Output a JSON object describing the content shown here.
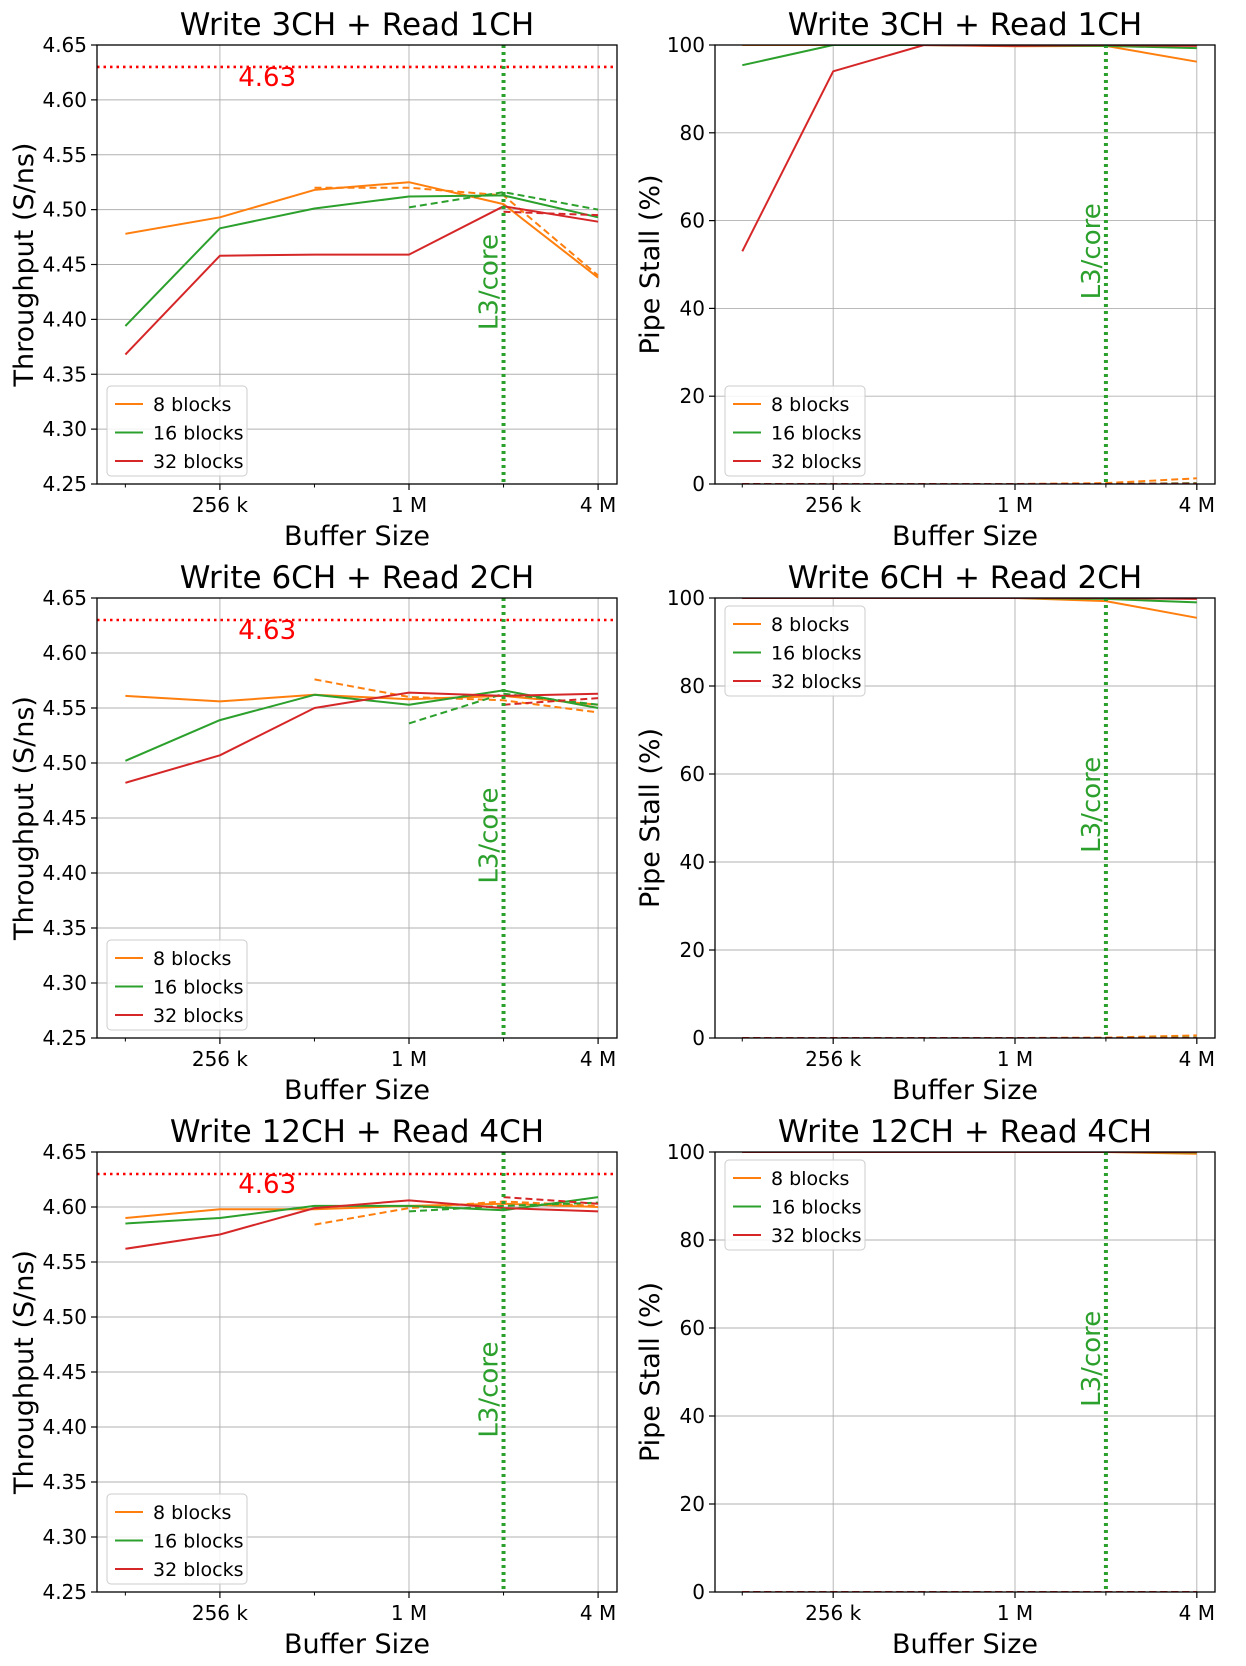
{
  "colors": {
    "8 blocks": "#ff7f0e",
    "16 blocks": "#2ca02c",
    "32 blocks": "#d62728",
    "ref_line": "#ff0000",
    "l3_line": "#2ca02c"
  },
  "chart_data": [
    {
      "type": "line",
      "title": "Write 3CH + Read 1CH",
      "xlabel": "Buffer Size",
      "ylabel": "Throughput (S/ns)",
      "xscale": "log2",
      "xticks": [
        "256 k",
        "1 M",
        "4 M"
      ],
      "ylim": [
        4.25,
        4.65
      ],
      "yticks": [
        "4.25",
        "4.30",
        "4.35",
        "4.40",
        "4.45",
        "4.50",
        "4.55",
        "4.60",
        "4.65"
      ],
      "grid": true,
      "legend": "lower-left",
      "hline": {
        "value": 4.63,
        "label": "4.63"
      },
      "vline": {
        "label": "L3/core"
      },
      "series": [
        {
          "name": "8 blocks",
          "points": [
            [
              -1,
              4.478
            ],
            [
              0,
              4.493
            ],
            [
              1,
              4.518
            ],
            [
              2,
              4.525
            ],
            [
              3,
              4.505
            ],
            [
              4,
              4.438
            ]
          ],
          "dashed": [
            [
              1,
              4.52
            ],
            [
              2,
              4.52
            ],
            [
              3,
              4.513
            ],
            [
              4,
              4.44
            ]
          ]
        },
        {
          "name": "16 blocks",
          "points": [
            [
              -1,
              4.394
            ],
            [
              0,
              4.483
            ],
            [
              1,
              4.501
            ],
            [
              2,
              4.512
            ],
            [
              3,
              4.513
            ],
            [
              4,
              4.493
            ]
          ],
          "dashed": [
            [
              2,
              4.502
            ],
            [
              3,
              4.516
            ],
            [
              4,
              4.5
            ]
          ]
        },
        {
          "name": "32 blocks",
          "points": [
            [
              -1,
              4.368
            ],
            [
              0,
              4.458
            ],
            [
              1,
              4.459
            ],
            [
              2,
              4.459
            ],
            [
              3,
              4.503
            ],
            [
              4,
              4.489
            ]
          ],
          "dashed": [
            [
              3,
              4.498
            ],
            [
              4,
              4.495
            ]
          ]
        }
      ]
    },
    {
      "type": "line",
      "title": "Write 3CH + Read 1CH",
      "xlabel": "Buffer Size",
      "ylabel": "Pipe Stall (%)",
      "xscale": "log2",
      "xticks": [
        "256 k",
        "1 M",
        "4 M"
      ],
      "ylim": [
        0,
        100
      ],
      "yticks": [
        "0",
        "20",
        "40",
        "60",
        "80",
        "100"
      ],
      "grid": true,
      "legend": "lower-left",
      "vline": {
        "label": "L3/core"
      },
      "series": [
        {
          "name": "8 blocks",
          "points": [
            [
              -1,
              100
            ],
            [
              0,
              100
            ],
            [
              1,
              100
            ],
            [
              2,
              99.7
            ],
            [
              3,
              99.8
            ],
            [
              4,
              96.2
            ]
          ],
          "dashed": [
            [
              -1,
              0
            ],
            [
              0,
              0
            ],
            [
              1,
              0
            ],
            [
              2,
              0
            ],
            [
              3,
              0.2
            ],
            [
              4,
              1.3
            ]
          ]
        },
        {
          "name": "16 blocks",
          "points": [
            [
              -1,
              95.4
            ],
            [
              0,
              100
            ],
            [
              1,
              100
            ],
            [
              2,
              99.8
            ],
            [
              3,
              99.8
            ],
            [
              4,
              99.3
            ]
          ],
          "dashed": [
            [
              -1,
              0
            ],
            [
              0,
              0
            ],
            [
              1,
              0
            ],
            [
              2,
              0
            ],
            [
              3,
              0
            ],
            [
              4,
              0.2
            ]
          ]
        },
        {
          "name": "32 blocks",
          "points": [
            [
              -1,
              53
            ],
            [
              0,
              94
            ],
            [
              1,
              100
            ],
            [
              2,
              99.8
            ],
            [
              3,
              100
            ],
            [
              4,
              99.8
            ]
          ],
          "dashed": [
            [
              -1,
              0
            ],
            [
              0,
              0
            ],
            [
              1,
              0
            ],
            [
              2,
              0
            ],
            [
              3,
              0
            ],
            [
              4,
              0.1
            ]
          ]
        }
      ]
    },
    {
      "type": "line",
      "title": "Write 6CH + Read 2CH",
      "xlabel": "Buffer Size",
      "ylabel": "Throughput (S/ns)",
      "xscale": "log2",
      "xticks": [
        "256 k",
        "1 M",
        "4 M"
      ],
      "ylim": [
        4.25,
        4.65
      ],
      "yticks": [
        "4.25",
        "4.30",
        "4.35",
        "4.40",
        "4.45",
        "4.50",
        "4.55",
        "4.60",
        "4.65"
      ],
      "grid": true,
      "legend": "lower-left",
      "hline": {
        "value": 4.63,
        "label": "4.63"
      },
      "vline": {
        "label": "L3/core"
      },
      "series": [
        {
          "name": "8 blocks",
          "points": [
            [
              -1,
              4.561
            ],
            [
              0,
              4.556
            ],
            [
              1,
              4.562
            ],
            [
              2,
              4.558
            ],
            [
              3,
              4.561
            ],
            [
              4,
              4.553
            ]
          ],
          "dashed": [
            [
              1,
              4.576
            ],
            [
              2,
              4.56
            ],
            [
              3,
              4.557
            ],
            [
              4,
              4.546
            ]
          ]
        },
        {
          "name": "16 blocks",
          "points": [
            [
              -1,
              4.502
            ],
            [
              0,
              4.539
            ],
            [
              1,
              4.562
            ],
            [
              2,
              4.553
            ],
            [
              3,
              4.566
            ],
            [
              4,
              4.55
            ]
          ],
          "dashed": [
            [
              2,
              4.536
            ],
            [
              3,
              4.563
            ],
            [
              4,
              4.553
            ]
          ]
        },
        {
          "name": "32 blocks",
          "points": [
            [
              -1,
              4.482
            ],
            [
              0,
              4.507
            ],
            [
              1,
              4.55
            ],
            [
              2,
              4.564
            ],
            [
              3,
              4.561
            ],
            [
              4,
              4.563
            ]
          ],
          "dashed": [
            [
              3,
              4.553
            ],
            [
              4,
              4.559
            ]
          ]
        }
      ]
    },
    {
      "type": "line",
      "title": "Write 6CH + Read 2CH",
      "xlabel": "Buffer Size",
      "ylabel": "Pipe Stall (%)",
      "xscale": "log2",
      "xticks": [
        "256 k",
        "1 M",
        "4 M"
      ],
      "ylim": [
        0,
        100
      ],
      "yticks": [
        "0",
        "20",
        "40",
        "60",
        "80",
        "100"
      ],
      "grid": true,
      "legend": "upper-left",
      "vline": {
        "label": "L3/core"
      },
      "series": [
        {
          "name": "8 blocks",
          "points": [
            [
              -1,
              100
            ],
            [
              0,
              100
            ],
            [
              1,
              100
            ],
            [
              2,
              100
            ],
            [
              3,
              99.3
            ],
            [
              4,
              95.5
            ]
          ],
          "dashed": [
            [
              -1,
              0
            ],
            [
              0,
              0
            ],
            [
              1,
              0
            ],
            [
              2,
              0
            ],
            [
              3,
              0.1
            ],
            [
              4,
              0.6
            ]
          ]
        },
        {
          "name": "16 blocks",
          "points": [
            [
              -1,
              100
            ],
            [
              0,
              100
            ],
            [
              1,
              100
            ],
            [
              2,
              100
            ],
            [
              3,
              99.8
            ],
            [
              4,
              99
            ]
          ],
          "dashed": [
            [
              -1,
              0
            ],
            [
              0,
              0
            ],
            [
              1,
              0
            ],
            [
              2,
              0
            ],
            [
              3,
              0
            ],
            [
              4,
              0.1
            ]
          ]
        },
        {
          "name": "32 blocks",
          "points": [
            [
              -1,
              100
            ],
            [
              0,
              100
            ],
            [
              1,
              100
            ],
            [
              2,
              100
            ],
            [
              3,
              100
            ],
            [
              4,
              99.8
            ]
          ],
          "dashed": [
            [
              -1,
              0
            ],
            [
              0,
              0
            ],
            [
              1,
              0
            ],
            [
              2,
              0
            ],
            [
              3,
              0
            ],
            [
              4,
              0
            ]
          ]
        }
      ]
    },
    {
      "type": "line",
      "title": "Write 12CH + Read 4CH",
      "xlabel": "Buffer Size",
      "ylabel": "Throughput (S/ns)",
      "xscale": "log2",
      "xticks": [
        "256 k",
        "1 M",
        "4 M"
      ],
      "ylim": [
        4.25,
        4.65
      ],
      "yticks": [
        "4.25",
        "4.30",
        "4.35",
        "4.40",
        "4.45",
        "4.50",
        "4.55",
        "4.60",
        "4.65"
      ],
      "grid": true,
      "legend": "lower-left",
      "hline": {
        "value": 4.63,
        "label": "4.63"
      },
      "vline": {
        "label": "L3/core"
      },
      "series": [
        {
          "name": "8 blocks",
          "points": [
            [
              -1,
              4.59
            ],
            [
              0,
              4.598
            ],
            [
              1,
              4.598
            ],
            [
              2,
              4.601
            ],
            [
              3,
              4.603
            ],
            [
              4,
              4.6
            ]
          ],
          "dashed": [
            [
              1,
              4.584
            ],
            [
              2,
              4.599
            ],
            [
              3,
              4.605
            ],
            [
              4,
              4.601
            ]
          ]
        },
        {
          "name": "16 blocks",
          "points": [
            [
              -1,
              4.585
            ],
            [
              0,
              4.59
            ],
            [
              1,
              4.601
            ],
            [
              2,
              4.601
            ],
            [
              3,
              4.597
            ],
            [
              4,
              4.609
            ]
          ],
          "dashed": [
            [
              2,
              4.596
            ],
            [
              3,
              4.601
            ],
            [
              4,
              4.604
            ]
          ]
        },
        {
          "name": "32 blocks",
          "points": [
            [
              -1,
              4.562
            ],
            [
              0,
              4.575
            ],
            [
              1,
              4.599
            ],
            [
              2,
              4.606
            ],
            [
              3,
              4.599
            ],
            [
              4,
              4.596
            ]
          ],
          "dashed": [
            [
              3,
              4.609
            ],
            [
              4,
              4.603
            ]
          ]
        }
      ]
    },
    {
      "type": "line",
      "title": "Write 12CH + Read 4CH",
      "xlabel": "Buffer Size",
      "ylabel": "Pipe Stall (%)",
      "xscale": "log2",
      "xticks": [
        "256 k",
        "1 M",
        "4 M"
      ],
      "ylim": [
        0,
        100
      ],
      "yticks": [
        "0",
        "20",
        "40",
        "60",
        "80",
        "100"
      ],
      "grid": true,
      "legend": "upper-left",
      "vline": {
        "label": "L3/core"
      },
      "series": [
        {
          "name": "8 blocks",
          "points": [
            [
              -1,
              100
            ],
            [
              0,
              100
            ],
            [
              1,
              100
            ],
            [
              2,
              100
            ],
            [
              3,
              100
            ],
            [
              4,
              99.6
            ]
          ],
          "dashed": [
            [
              -1,
              0
            ],
            [
              0,
              0
            ],
            [
              1,
              0
            ],
            [
              2,
              0
            ],
            [
              3,
              0
            ],
            [
              4,
              0
            ]
          ]
        },
        {
          "name": "16 blocks",
          "points": [
            [
              -1,
              100
            ],
            [
              0,
              100
            ],
            [
              1,
              100
            ],
            [
              2,
              100
            ],
            [
              3,
              100
            ],
            [
              4,
              99.9
            ]
          ],
          "dashed": [
            [
              -1,
              0
            ],
            [
              0,
              0
            ],
            [
              1,
              0
            ],
            [
              2,
              0
            ],
            [
              3,
              0
            ],
            [
              4,
              0
            ]
          ]
        },
        {
          "name": "32 blocks",
          "points": [
            [
              -1,
              100
            ],
            [
              0,
              100
            ],
            [
              1,
              100
            ],
            [
              2,
              100
            ],
            [
              3,
              100
            ],
            [
              4,
              100
            ]
          ],
          "dashed": [
            [
              -1,
              0
            ],
            [
              0,
              0
            ],
            [
              1,
              0
            ],
            [
              2,
              0
            ],
            [
              3,
              0
            ],
            [
              4,
              0
            ]
          ]
        }
      ]
    }
  ]
}
